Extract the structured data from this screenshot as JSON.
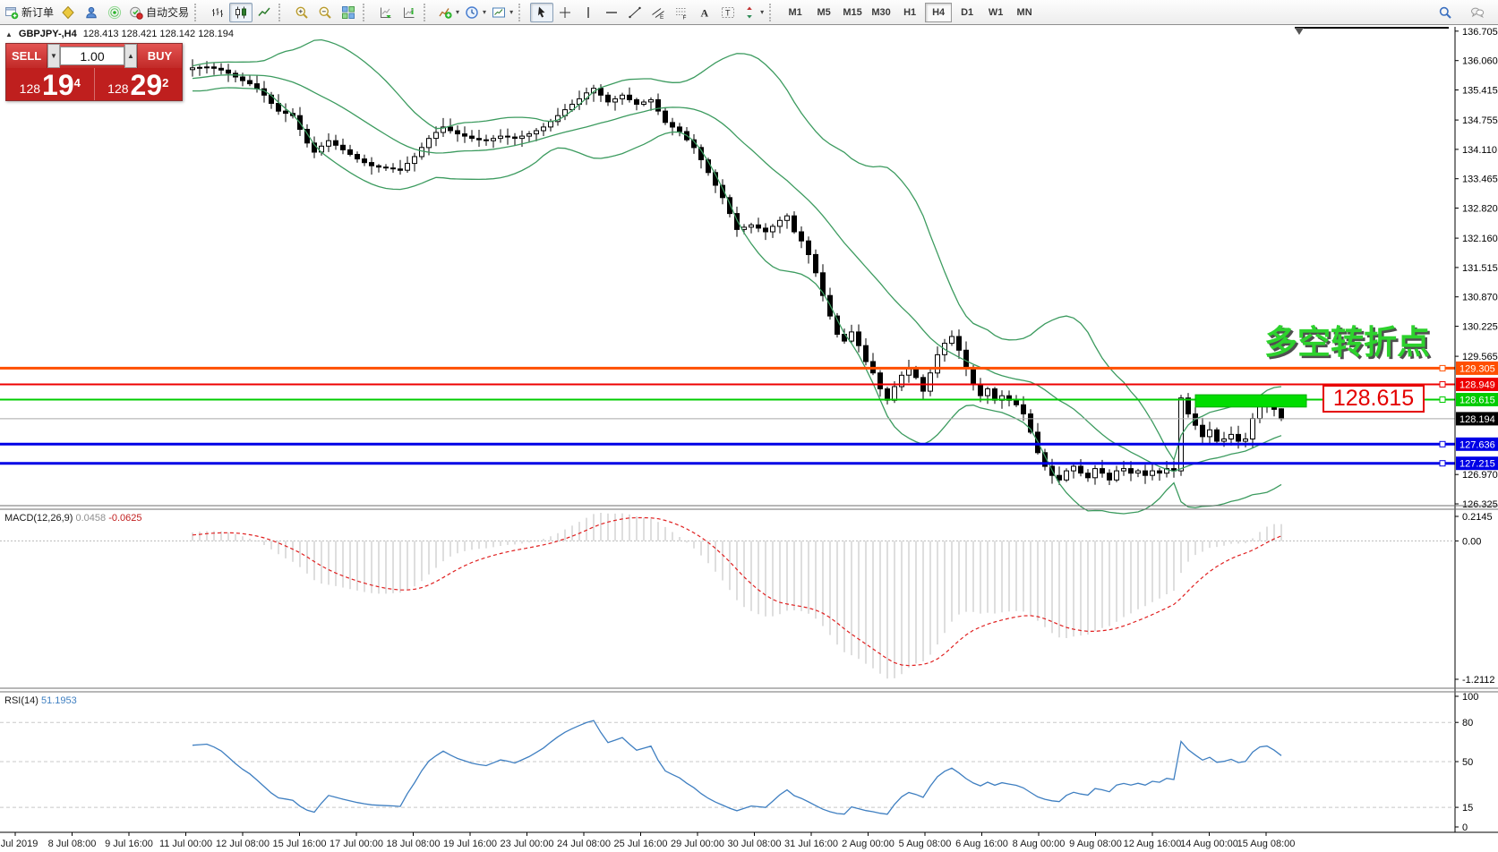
{
  "toolbar": {
    "groups": [
      {
        "items": [
          {
            "name": "new-order",
            "label": "新订单"
          },
          {
            "name": "market-watch"
          },
          {
            "name": "navigator"
          },
          {
            "name": "signals"
          },
          {
            "name": "autotrading",
            "label": "自动交易"
          }
        ]
      },
      {
        "items": [
          {
            "name": "chart-bars"
          },
          {
            "name": "chart-candles",
            "active": true
          },
          {
            "name": "chart-line"
          }
        ]
      },
      {
        "items": [
          {
            "name": "zoom-in"
          },
          {
            "name": "zoom-out"
          },
          {
            "name": "tile-windows"
          }
        ]
      },
      {
        "items": [
          {
            "name": "auto-scroll"
          },
          {
            "name": "chart-shift"
          }
        ]
      },
      {
        "items": [
          {
            "name": "indicators-add",
            "dropdown": true
          },
          {
            "name": "periods-clock",
            "dropdown": true
          },
          {
            "name": "templates",
            "dropdown": true
          }
        ]
      },
      {
        "items": [
          {
            "name": "cursor",
            "active": true
          },
          {
            "name": "crosshair"
          },
          {
            "name": "vertical-line"
          },
          {
            "name": "horizontal-line"
          },
          {
            "name": "trend-line"
          },
          {
            "name": "equidistant-channel"
          },
          {
            "name": "fibonacci"
          },
          {
            "name": "text"
          },
          {
            "name": "text-label"
          },
          {
            "name": "arrows",
            "dropdown": true
          }
        ]
      }
    ],
    "timeframes": [
      {
        "label": "M1"
      },
      {
        "label": "M5"
      },
      {
        "label": "M15"
      },
      {
        "label": "M30"
      },
      {
        "label": "H1"
      },
      {
        "label": "H4",
        "active": true
      },
      {
        "label": "D1"
      },
      {
        "label": "W1"
      },
      {
        "label": "MN"
      }
    ],
    "right_icons": [
      {
        "name": "search"
      },
      {
        "name": "chat"
      }
    ]
  },
  "symbol_bar": {
    "symbol": "GBPJPY-,H4",
    "ohlc_text": "128.413 128.421 128.142 128.194"
  },
  "trade_panel": {
    "sell_label": "SELL",
    "buy_label": "BUY",
    "volume": "1.00",
    "sell": {
      "prefix": "128",
      "big": "19",
      "sup": "4"
    },
    "buy": {
      "prefix": "128",
      "big": "29",
      "sup": "2"
    }
  },
  "annotations": {
    "turning_point": "多空转折点",
    "price_box": "128.615"
  },
  "chart_data": [
    {
      "type": "candlestick",
      "title": "GBPJPY- H4",
      "current_ohlc": {
        "open": 128.413,
        "high": 128.421,
        "low": 128.142,
        "close": 128.194
      },
      "ylim": [
        126.325,
        136.8
      ],
      "y_ticks": [
        136.705,
        136.06,
        135.415,
        134.755,
        134.11,
        133.465,
        132.82,
        132.16,
        131.515,
        130.87,
        130.225,
        129.565,
        126.97,
        126.325
      ],
      "seed_history": [
        135.4,
        135.52,
        135.63,
        135.7,
        135.64,
        135.52,
        135.41,
        135.36,
        135.42,
        135.55,
        135.68,
        135.76,
        135.72,
        135.6,
        135.5,
        135.46,
        135.53,
        135.65,
        135.75,
        135.8,
        135.72,
        135.6,
        135.52,
        135.48,
        135.55,
        135.66,
        135.74,
        135.7,
        135.58,
        135.48,
        135.44,
        135.52,
        135.64,
        135.74,
        135.8,
        135.84,
        135.8,
        135.74,
        135.78,
        135.86
      ],
      "closes": [
        135.9,
        135.91,
        135.92,
        135.89,
        135.85,
        135.78,
        135.7,
        135.62,
        135.55,
        135.44,
        135.3,
        135.12,
        134.95,
        134.9,
        134.85,
        134.55,
        134.25,
        134.05,
        134.18,
        134.3,
        134.2,
        134.1,
        134.0,
        133.9,
        133.82,
        133.75,
        133.72,
        133.7,
        133.68,
        133.65,
        133.8,
        133.95,
        134.15,
        134.35,
        134.48,
        134.6,
        134.52,
        134.45,
        134.4,
        134.35,
        134.32,
        134.3,
        134.35,
        134.4,
        134.38,
        134.35,
        134.4,
        134.45,
        134.52,
        134.6,
        134.72,
        134.85,
        134.98,
        135.1,
        135.22,
        135.35,
        135.45,
        135.3,
        135.15,
        135.22,
        135.3,
        135.2,
        135.1,
        135.15,
        135.2,
        134.95,
        134.7,
        134.6,
        134.5,
        134.32,
        134.15,
        133.88,
        133.6,
        133.32,
        133.05,
        132.7,
        132.35,
        132.4,
        132.45,
        132.38,
        132.3,
        132.42,
        132.55,
        132.65,
        132.3,
        132.1,
        131.8,
        131.4,
        130.9,
        130.45,
        130.05,
        129.9,
        130.1,
        129.8,
        129.45,
        129.2,
        128.85,
        128.6,
        128.9,
        129.15,
        129.3,
        129.1,
        128.8,
        129.2,
        129.6,
        129.85,
        130.0,
        129.7,
        129.3,
        128.95,
        128.7,
        128.85,
        128.6,
        128.7,
        128.6,
        128.5,
        128.3,
        127.9,
        127.45,
        127.15,
        126.95,
        126.85,
        127.05,
        127.15,
        127.0,
        126.9,
        127.1,
        127.0,
        126.85,
        127.05,
        127.1,
        127.0,
        127.05,
        126.95,
        127.05,
        127.0,
        127.1,
        127.05,
        128.65,
        128.3,
        128.05,
        127.8,
        127.95,
        127.7,
        127.75,
        127.85,
        127.7,
        127.75,
        128.2,
        128.5,
        128.55,
        128.4,
        128.19
      ],
      "bollinger": {
        "period": 20,
        "deviation": 2,
        "color": "#3c9b5f"
      },
      "levels": [
        {
          "price": 129.305,
          "color": "#ff4f00",
          "width": 3
        },
        {
          "price": 128.949,
          "color": "#ee0000",
          "width": 2
        },
        {
          "price": 128.615,
          "color": "#00cc00",
          "width": 2
        },
        {
          "price": 127.636,
          "color": "#0000e6",
          "width": 3
        },
        {
          "price": 127.215,
          "color": "#0000e6",
          "width": 3
        }
      ],
      "current_price": {
        "value": 128.194
      },
      "highlight_rect": {
        "bar_start": 140,
        "bar_end": 155.5,
        "price_top": 128.72,
        "price_bottom": 128.45,
        "color": "#00dd00"
      }
    },
    {
      "type": "macd",
      "label": "MACD(12,26,9)",
      "fast": 12,
      "slow": 26,
      "signal": 9,
      "value": "0.0458",
      "signal_value": "-0.0625",
      "y_ticks": [
        "0.2145",
        "0.00",
        "-1.2112"
      ],
      "ylim": [
        -1.2112,
        0.2145
      ],
      "histogram_color": "#bdbdbd",
      "signal_color": "#e02020"
    },
    {
      "type": "rsi",
      "label": "RSI(14)",
      "period": 14,
      "value": "51.1953",
      "levels": [
        80,
        50,
        15
      ],
      "y_ticks": [
        100,
        80,
        50,
        15,
        0
      ],
      "ylim": [
        0,
        100
      ],
      "color": "#3f7fc1"
    }
  ],
  "time_axis": {
    "labels": [
      "5 Jul 2019",
      "8 Jul 08:00",
      "9 Jul 16:00",
      "11 Jul 00:00",
      "12 Jul 08:00",
      "15 Jul 16:00",
      "17 Jul 00:00",
      "18 Jul 08:00",
      "19 Jul 16:00",
      "23 Jul 00:00",
      "24 Jul 08:00",
      "25 Jul 16:00",
      "29 Jul 00:00",
      "30 Jul 08:00",
      "31 Jul 16:00",
      "2 Aug 00:00",
      "5 Aug 08:00",
      "6 Aug 16:00",
      "8 Aug 00:00",
      "9 Aug 08:00",
      "12 Aug 16:00",
      "14 Aug 00:00",
      "15 Aug 08:00"
    ]
  }
}
